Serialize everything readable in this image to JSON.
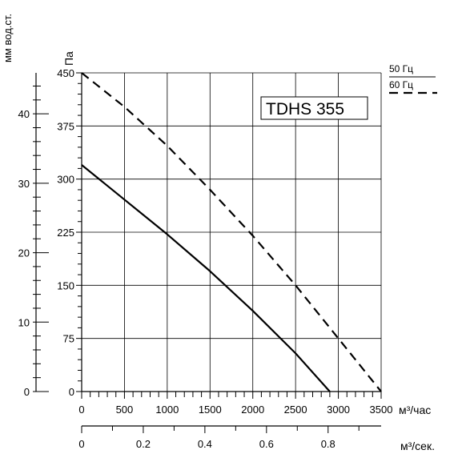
{
  "chart_data": {
    "type": "line",
    "title": "TDHS 355",
    "x": {
      "label": "м³/час",
      "range": [
        0,
        3500
      ],
      "ticks": [
        "0",
        "500",
        "1000",
        "1500",
        "2000",
        "2500",
        "3000",
        "3500"
      ]
    },
    "x2": {
      "label": "м³/сек.",
      "range": [
        0,
        0.9722
      ],
      "ticks": [
        "0",
        "0.2",
        "0.4",
        "0.6",
        "0.8"
      ]
    },
    "y": {
      "label": "Па",
      "range": [
        0,
        450
      ],
      "ticks": [
        "0",
        "75",
        "150",
        "225",
        "300",
        "375",
        "450"
      ]
    },
    "y2": {
      "label": "мм вод.ст.",
      "range": [
        0,
        45.9
      ],
      "ticks": [
        "0",
        "10",
        "20",
        "30",
        "40"
      ]
    },
    "grid": true,
    "legend": {
      "position": "top-right",
      "style": "underline"
    },
    "series": [
      {
        "name": "50 Гц",
        "line_style": "solid",
        "points": [
          [
            0,
            320
          ],
          [
            500,
            271
          ],
          [
            1000,
            222
          ],
          [
            1500,
            170
          ],
          [
            2000,
            114
          ],
          [
            2500,
            54
          ],
          [
            2900,
            0
          ]
        ]
      },
      {
        "name": "60 Гц",
        "line_style": "dashed",
        "points": [
          [
            0,
            450
          ],
          [
            500,
            402
          ],
          [
            1000,
            347
          ],
          [
            1500,
            285
          ],
          [
            2000,
            220
          ],
          [
            2500,
            150
          ],
          [
            3000,
            75
          ],
          [
            3500,
            0
          ]
        ]
      }
    ]
  }
}
